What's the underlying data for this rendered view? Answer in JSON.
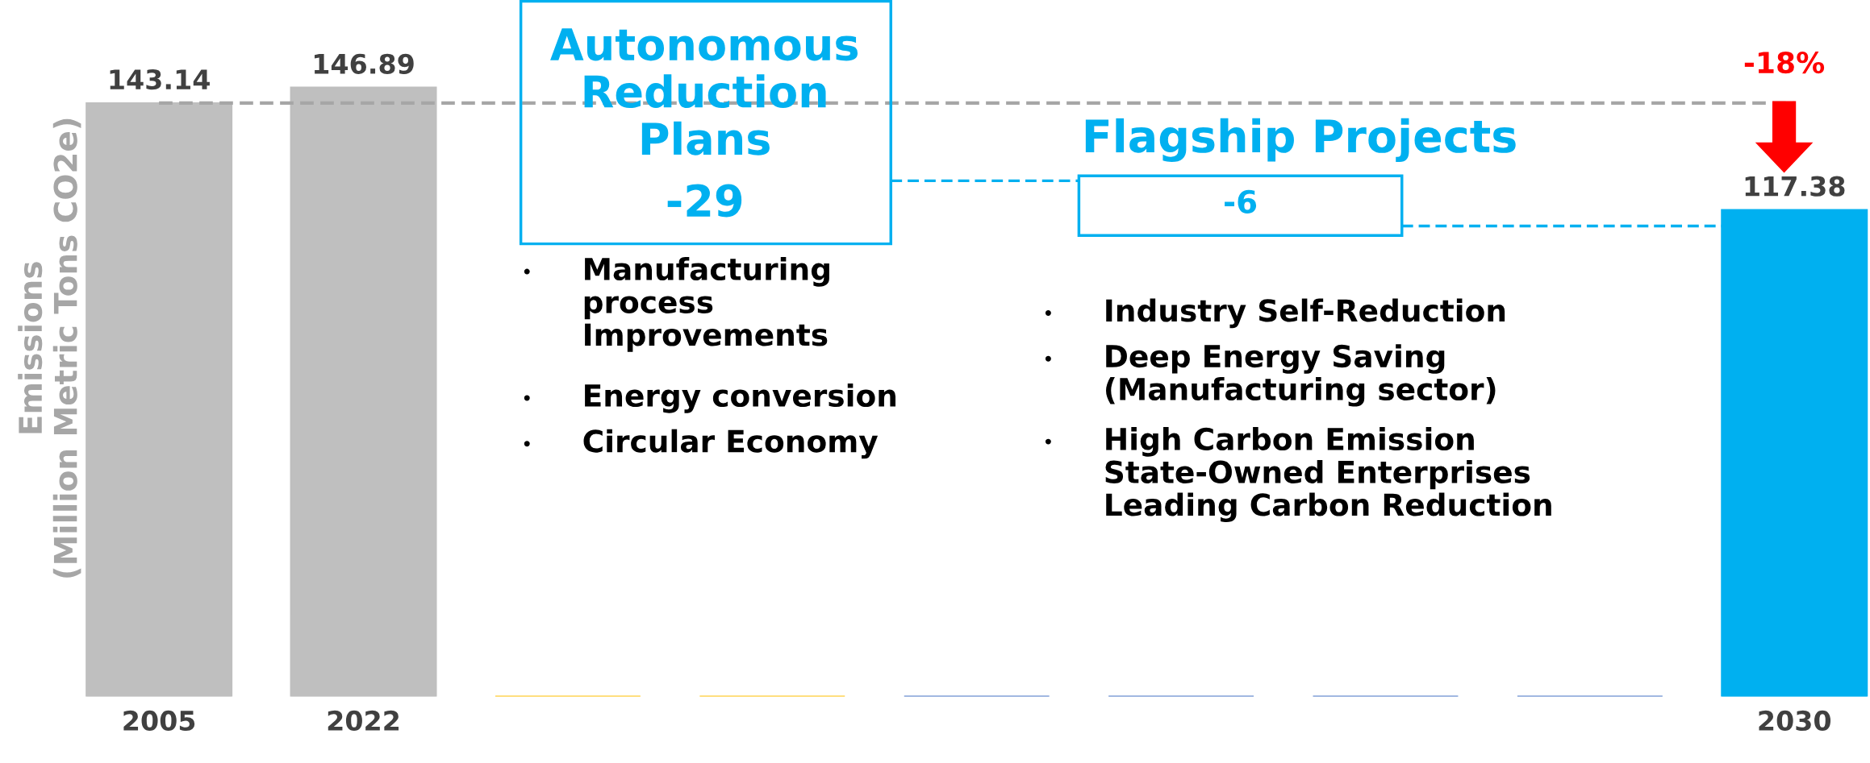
{
  "chart_data": {
    "type": "bar",
    "categories": [
      "2005",
      "2022",
      null,
      null,
      null,
      null,
      null,
      null,
      "2030"
    ],
    "values": [
      143.14,
      146.89,
      0,
      0,
      0,
      0,
      0,
      0,
      117.38
    ],
    "colors": [
      "#bfbfbf",
      "#bfbfbf",
      "#ffc000",
      "#ffc000",
      "#4472c4",
      "#4472c4",
      "#4472c4",
      "#4472c4",
      "#00b0f0"
    ],
    "value_labels": [
      "143.14",
      "146.89",
      null,
      null,
      null,
      null,
      null,
      null,
      "117.38"
    ],
    "ylim": [
      0,
      168
    ],
    "tick_labels": "x",
    "ylabel": "Emissions\n(Million Metric Tons CO2e)",
    "ref_lines": [
      {
        "axis": "y",
        "value": 143.14,
        "color": "#a6a6a6",
        "line_style": "dashed"
      }
    ],
    "annotations": [
      "Autonomous\nReduction\nPlans",
      "-29",
      "Flagship Projects",
      "-6",
      "Manufacturing\nprocess\nImprovements",
      "Energy conversion",
      "Circular Economy",
      "Industry Self-Reduction",
      "Deep Energy Saving\n(Manufacturing sector)",
      "High Carbon Emission\nState-Owned Enterprises\nLeading Carbon Reduction",
      "-18%"
    ]
  }
}
